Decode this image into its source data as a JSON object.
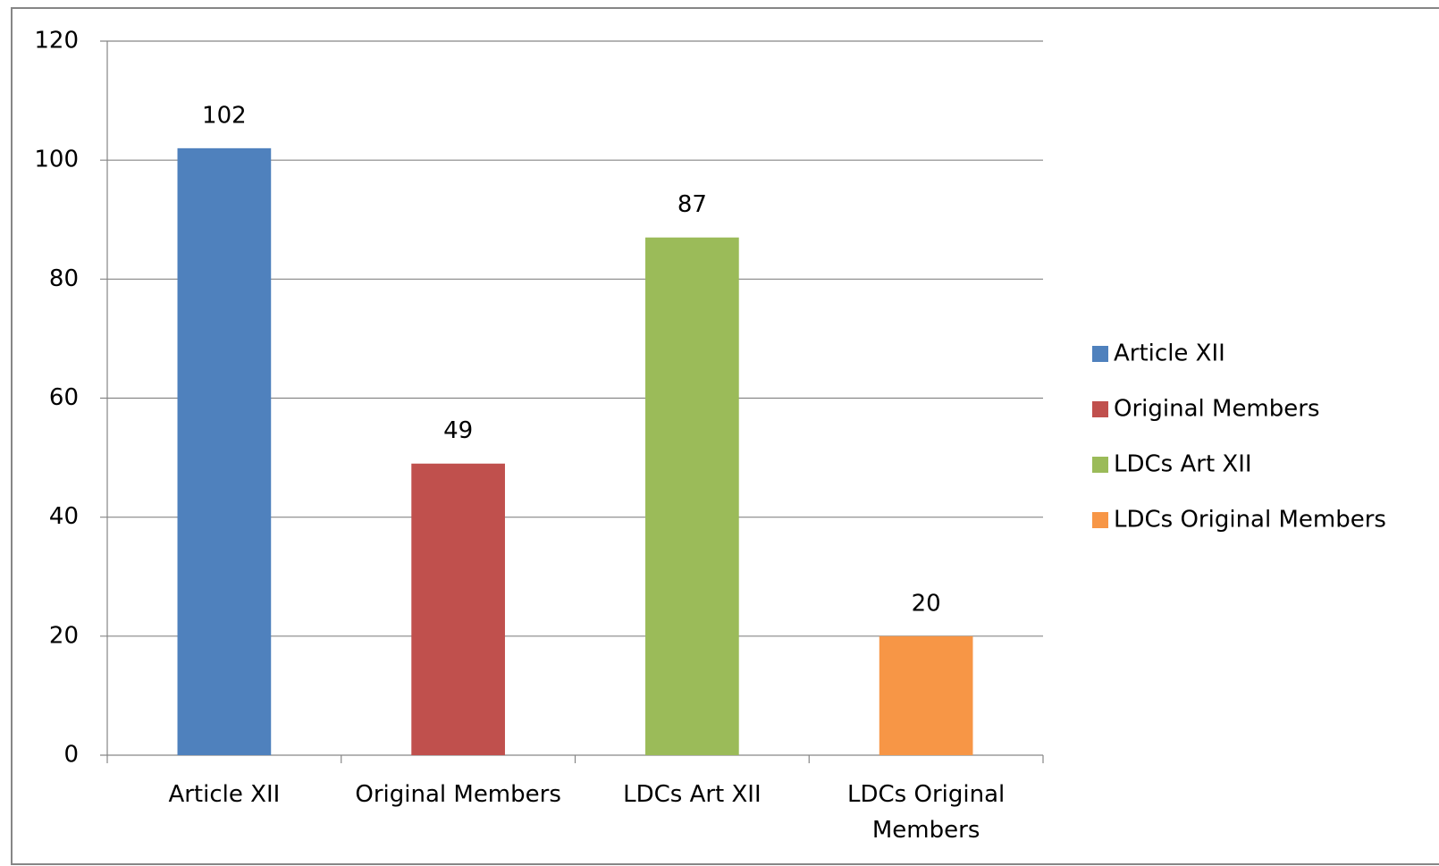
{
  "chart_data": {
    "type": "bar",
    "categories": [
      "Article XII",
      "Original Members",
      "LDCs Art XII",
      "LDCs Original Members"
    ],
    "values": [
      102,
      49,
      87,
      20
    ],
    "colors": [
      "#4f81bd",
      "#c0504d",
      "#9bbb59",
      "#f79646"
    ],
    "ylim": [
      0,
      120
    ],
    "yticks": [
      0,
      20,
      40,
      60,
      80,
      100,
      120
    ],
    "grid": true,
    "legend": "right"
  }
}
